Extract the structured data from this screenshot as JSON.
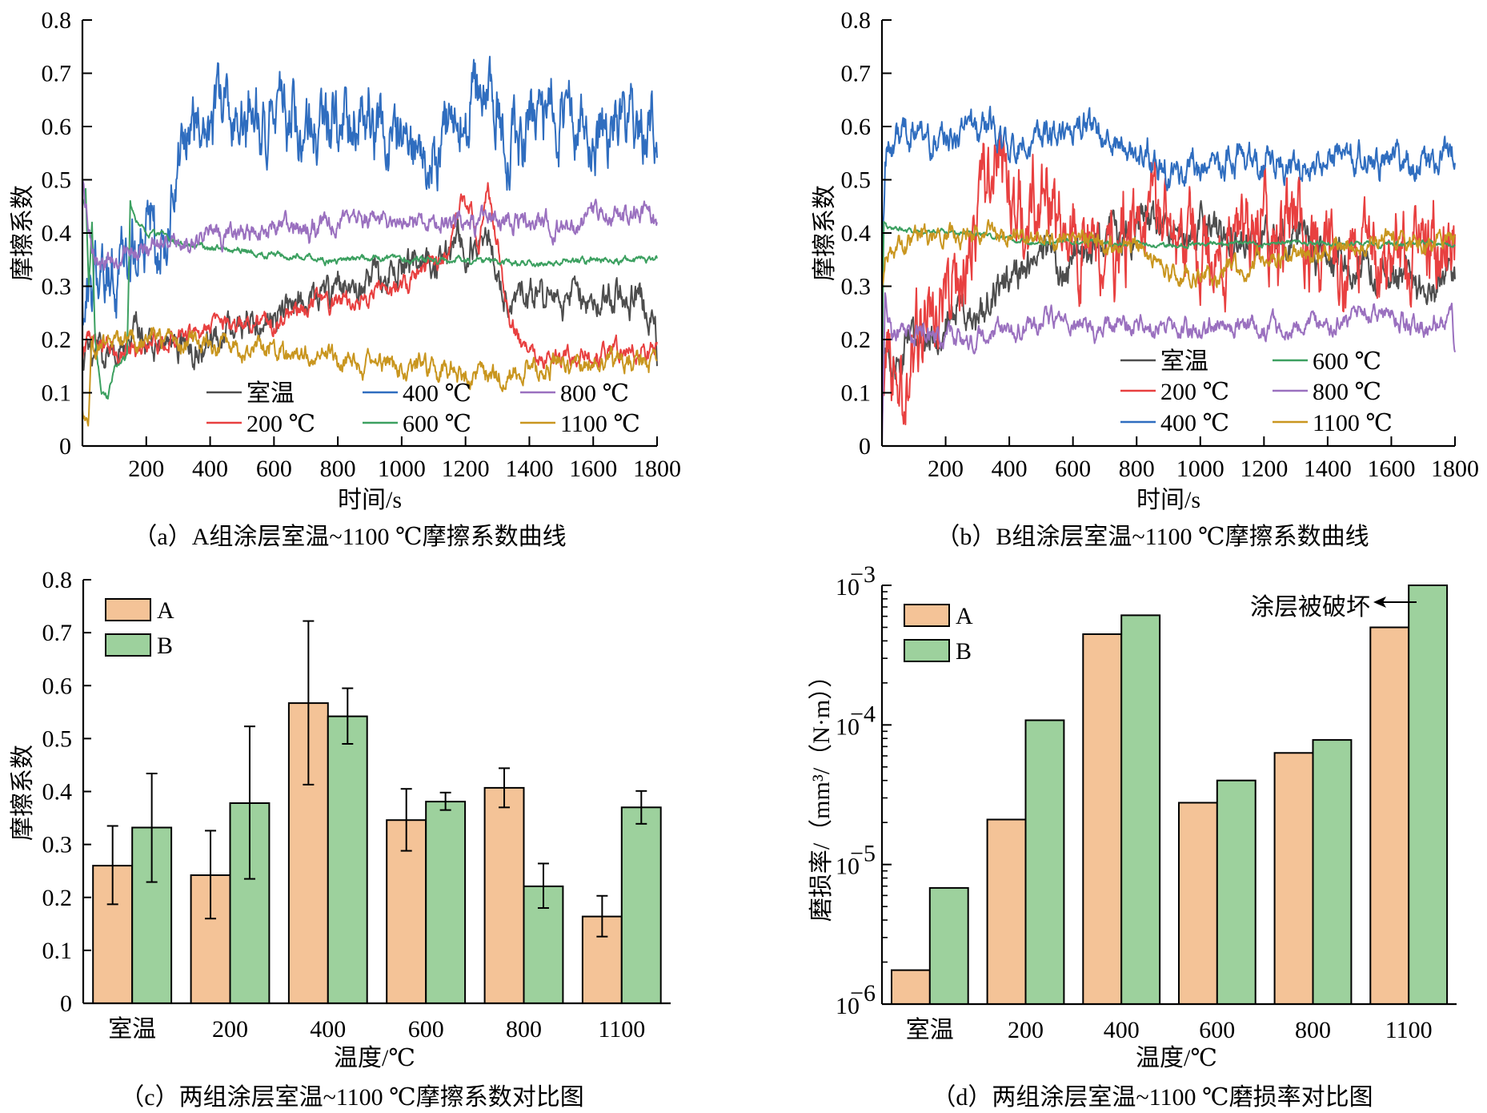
{
  "chart_data": [
    {
      "id": "a",
      "type": "line",
      "caption": "（a）A组涂层室温~1100 ℃摩擦系数曲线",
      "xlabel": "时间/s",
      "ylabel": "摩擦系数",
      "xlim": [
        0,
        1800
      ],
      "ylim": [
        0,
        0.8
      ],
      "xticks": [
        "200",
        "400",
        "600",
        "800",
        "1000",
        "1200",
        "1400",
        "1600",
        "1800"
      ],
      "xtick_values": [
        200,
        400,
        600,
        800,
        1000,
        1200,
        1400,
        1600,
        1800
      ],
      "yticks": [
        "0",
        "0.1",
        "0.2",
        "0.3",
        "0.4",
        "0.5",
        "0.6",
        "0.7",
        "0.8"
      ],
      "ytick_values": [
        0,
        0.1,
        0.2,
        0.3,
        0.4,
        0.5,
        0.6,
        0.7,
        0.8
      ],
      "legend_layout": "bottom-center, 3 columns",
      "series": [
        {
          "name": "室温",
          "color": "#4d4d4d",
          "noise": 0.02,
          "x": [
            0,
            20,
            100,
            200,
            300,
            400,
            500,
            600,
            700,
            800,
            900,
            1000,
            1100,
            1200,
            1250,
            1280,
            1320,
            1400,
            1500,
            1600,
            1700,
            1790,
            1800
          ],
          "y": [
            0.18,
            0.17,
            0.17,
            0.18,
            0.19,
            0.2,
            0.23,
            0.25,
            0.27,
            0.29,
            0.31,
            0.33,
            0.35,
            0.36,
            0.38,
            0.37,
            0.28,
            0.26,
            0.28,
            0.27,
            0.27,
            0.26,
            0.18
          ]
        },
        {
          "name": "200 ℃",
          "color": "#e84040",
          "noise": 0.012,
          "x": [
            0,
            20,
            100,
            200,
            300,
            400,
            500,
            600,
            700,
            800,
            900,
            1000,
            1100,
            1150,
            1180,
            1220,
            1240,
            1270,
            1300,
            1340,
            1400,
            1500,
            1600,
            1700,
            1800
          ],
          "y": [
            0.17,
            0.2,
            0.18,
            0.18,
            0.2,
            0.22,
            0.23,
            0.24,
            0.26,
            0.27,
            0.28,
            0.3,
            0.34,
            0.37,
            0.46,
            0.44,
            0.35,
            0.49,
            0.38,
            0.22,
            0.17,
            0.17,
            0.17,
            0.18,
            0.18
          ]
        },
        {
          "name": "400 ℃",
          "color": "#2f6dbf",
          "noise": 0.045,
          "x": [
            0,
            20,
            100,
            200,
            250,
            300,
            400,
            500,
            600,
            700,
            800,
            900,
            1000,
            1100,
            1150,
            1200,
            1250,
            1300,
            1400,
            1500,
            1600,
            1700,
            1790,
            1800
          ],
          "y": [
            0.3,
            0.31,
            0.36,
            0.39,
            0.41,
            0.49,
            0.6,
            0.61,
            0.62,
            0.63,
            0.61,
            0.6,
            0.59,
            0.57,
            0.58,
            0.67,
            0.68,
            0.62,
            0.6,
            0.59,
            0.6,
            0.61,
            0.62,
            0.55
          ]
        },
        {
          "name": "600 ℃",
          "color": "#3ca060",
          "noise": 0.004,
          "x": [
            0,
            10,
            20,
            30,
            40,
            60,
            80,
            100,
            120,
            140,
            150,
            160,
            200,
            300,
            400,
            600,
            800,
            1000,
            1200,
            1400,
            1600,
            1800
          ],
          "y": [
            0.45,
            0.48,
            0.3,
            0.42,
            0.2,
            0.1,
            0.09,
            0.14,
            0.15,
            0.17,
            0.45,
            0.43,
            0.4,
            0.38,
            0.37,
            0.36,
            0.35,
            0.35,
            0.35,
            0.345,
            0.345,
            0.35
          ]
        },
        {
          "name": "800 ℃",
          "color": "#9a70bf",
          "noise": 0.013,
          "x": [
            0,
            10,
            30,
            60,
            100,
            200,
            300,
            400,
            500,
            600,
            700,
            800,
            900,
            1000,
            1100,
            1200,
            1300,
            1400,
            1500,
            1600,
            1700,
            1800
          ],
          "y": [
            0.5,
            0.45,
            0.37,
            0.35,
            0.34,
            0.37,
            0.39,
            0.4,
            0.4,
            0.41,
            0.41,
            0.42,
            0.42,
            0.42,
            0.43,
            0.42,
            0.42,
            0.42,
            0.42,
            0.43,
            0.43,
            0.42
          ]
        },
        {
          "name": "1100 ℃",
          "color": "#c9961f",
          "noise": 0.013,
          "x": [
            0,
            10,
            20,
            30,
            50,
            100,
            200,
            300,
            400,
            450,
            500,
            600,
            700,
            800,
            900,
            1000,
            1100,
            1200,
            1300,
            1400,
            1500,
            1600,
            1700,
            1800
          ],
          "y": [
            0.07,
            0.03,
            0.05,
            0.18,
            0.19,
            0.19,
            0.19,
            0.2,
            0.19,
            0.19,
            0.18,
            0.17,
            0.16,
            0.155,
            0.15,
            0.15,
            0.145,
            0.14,
            0.14,
            0.145,
            0.15,
            0.15,
            0.16,
            0.16
          ]
        }
      ]
    },
    {
      "id": "b",
      "type": "line",
      "caption": "（b）B组涂层室温~1100 ℃摩擦系数曲线",
      "xlabel": "时间/s",
      "ylabel": "摩擦系数",
      "xlim": [
        0,
        1800
      ],
      "ylim": [
        0,
        0.8
      ],
      "xticks": [
        "200",
        "400",
        "600",
        "800",
        "1000",
        "1200",
        "1400",
        "1600",
        "1800"
      ],
      "xtick_values": [
        200,
        400,
        600,
        800,
        1000,
        1200,
        1400,
        1600,
        1800
      ],
      "yticks": [
        "0",
        "0.1",
        "0.2",
        "0.3",
        "0.4",
        "0.5",
        "0.6",
        "0.7",
        "0.8"
      ],
      "ytick_values": [
        0,
        0.1,
        0.2,
        0.3,
        0.4,
        0.5,
        0.6,
        0.7,
        0.8
      ],
      "legend_layout": "bottom-right, 2 columns",
      "series": [
        {
          "name": "室温",
          "color": "#4d4d4d",
          "noise": 0.025,
          "x": [
            0,
            5,
            30,
            100,
            200,
            300,
            400,
            500,
            600,
            700,
            800,
            900,
            1000,
            1100,
            1200,
            1300,
            1400,
            1500,
            1600,
            1700,
            1790,
            1800
          ],
          "y": [
            0.05,
            0.18,
            0.17,
            0.19,
            0.22,
            0.26,
            0.3,
            0.34,
            0.36,
            0.38,
            0.38,
            0.4,
            0.4,
            0.39,
            0.38,
            0.37,
            0.36,
            0.34,
            0.32,
            0.3,
            0.32,
            0.3
          ]
        },
        {
          "name": "200 ℃",
          "color": "#e84040",
          "noise": 0.055,
          "x": [
            0,
            10,
            50,
            100,
            200,
            250,
            300,
            350,
            400,
            450,
            500,
            600,
            700,
            800,
            900,
            1000,
            1200,
            1400,
            1500,
            1600,
            1700,
            1800
          ],
          "y": [
            0.14,
            0.17,
            0.2,
            0.21,
            0.27,
            0.35,
            0.44,
            0.5,
            0.48,
            0.42,
            0.42,
            0.4,
            0.38,
            0.38,
            0.38,
            0.38,
            0.37,
            0.37,
            0.38,
            0.39,
            0.38,
            0.4
          ]
        },
        {
          "name": "400 ℃",
          "color": "#2f6dbf",
          "noise": 0.02,
          "x": [
            0,
            10,
            30,
            60,
            100,
            200,
            300,
            400,
            500,
            600,
            650,
            700,
            800,
            900,
            1000,
            1100,
            1200,
            1300,
            1400,
            1500,
            1600,
            1700,
            1800
          ],
          "y": [
            0.33,
            0.55,
            0.58,
            0.6,
            0.6,
            0.58,
            0.57,
            0.55,
            0.57,
            0.58,
            0.6,
            0.58,
            0.55,
            0.53,
            0.53,
            0.52,
            0.53,
            0.54,
            0.54,
            0.55,
            0.53,
            0.53,
            0.55
          ]
        },
        {
          "name": "600 ℃",
          "color": "#3ca060",
          "noise": 0.003,
          "x": [
            0,
            5,
            20,
            100,
            200,
            300,
            400,
            500,
            600,
            700,
            800,
            1000,
            1200,
            1400,
            1600,
            1800
          ],
          "y": [
            0.05,
            0.42,
            0.41,
            0.405,
            0.4,
            0.395,
            0.39,
            0.385,
            0.38,
            0.38,
            0.38,
            0.38,
            0.38,
            0.38,
            0.38,
            0.38
          ]
        },
        {
          "name": "800 ℃",
          "color": "#9a70bf",
          "noise": 0.012,
          "x": [
            0,
            10,
            30,
            100,
            200,
            300,
            400,
            500,
            600,
            700,
            800,
            900,
            1000,
            1100,
            1200,
            1300,
            1400,
            1500,
            1600,
            1700,
            1790,
            1800
          ],
          "y": [
            0.0,
            0.26,
            0.2,
            0.2,
            0.21,
            0.2,
            0.22,
            0.23,
            0.23,
            0.22,
            0.23,
            0.22,
            0.21,
            0.22,
            0.22,
            0.23,
            0.23,
            0.24,
            0.25,
            0.21,
            0.23,
            0.16
          ]
        },
        {
          "name": "1100 ℃",
          "color": "#c9961f",
          "noise": 0.012,
          "x": [
            0,
            10,
            50,
            150,
            250,
            300,
            400,
            500,
            600,
            700,
            800,
            850,
            900,
            1000,
            1050,
            1100,
            1200,
            1300,
            1400,
            1500,
            1600,
            1700,
            1800
          ],
          "y": [
            0.3,
            0.36,
            0.38,
            0.39,
            0.39,
            0.4,
            0.4,
            0.39,
            0.39,
            0.38,
            0.38,
            0.36,
            0.32,
            0.32,
            0.31,
            0.33,
            0.34,
            0.36,
            0.37,
            0.38,
            0.38,
            0.38,
            0.39
          ]
        }
      ]
    },
    {
      "id": "c",
      "type": "bar",
      "caption": "（c）两组涂层室温~1100 ℃摩擦系数对比图",
      "xlabel": "温度/℃",
      "ylabel": "摩擦系数",
      "ylim": [
        0,
        0.8
      ],
      "yticks": [
        "0",
        "0.1",
        "0.2",
        "0.3",
        "0.4",
        "0.5",
        "0.6",
        "0.7",
        "0.8"
      ],
      "ytick_values": [
        0,
        0.1,
        0.2,
        0.3,
        0.4,
        0.5,
        0.6,
        0.7,
        0.8
      ],
      "categories": [
        "室温",
        "200",
        "400",
        "600",
        "800",
        "1100"
      ],
      "legend_layout": "top-left",
      "series": [
        {
          "name": "A",
          "color": "#f4c397",
          "values": [
            0.26,
            0.242,
            0.567,
            0.346,
            0.407,
            0.164
          ],
          "err_low": [
            0.187,
            0.16,
            0.413,
            0.288,
            0.37,
            0.126
          ],
          "err_high": [
            0.335,
            0.326,
            0.722,
            0.405,
            0.444,
            0.203
          ]
        },
        {
          "name": "B",
          "color": "#9dd19d",
          "values": [
            0.332,
            0.378,
            0.542,
            0.381,
            0.221,
            0.37
          ],
          "err_low": [
            0.229,
            0.235,
            0.49,
            0.365,
            0.18,
            0.339
          ],
          "err_high": [
            0.434,
            0.523,
            0.595,
            0.398,
            0.264,
            0.401
          ]
        }
      ]
    },
    {
      "id": "d",
      "type": "bar",
      "caption": "（d）两组涂层室温~1100 ℃磨损率对比图",
      "xlabel": "温度/℃",
      "ylabel": "磨损率/（mm³/（N·m））",
      "yscale": "log",
      "ylim": [
        1e-06,
        0.001
      ],
      "yticks": [
        {
          "base": "10",
          "exp": "−6",
          "value": 1e-06
        },
        {
          "base": "10",
          "exp": "−5",
          "value": 1e-05
        },
        {
          "base": "10",
          "exp": "−4",
          "value": 0.0001
        },
        {
          "base": "10",
          "exp": "−3",
          "value": 0.001
        }
      ],
      "categories": [
        "室温",
        "200",
        "400",
        "600",
        "800",
        "1100"
      ],
      "legend_layout": "top-left",
      "annotation": "涂层被破坏",
      "series": [
        {
          "name": "A",
          "color": "#f4c397",
          "values": [
            1.75e-06,
            2.1e-05,
            0.000447,
            2.77e-05,
            6.3e-05,
            0.0005
          ]
        },
        {
          "name": "B",
          "color": "#9dd19d",
          "values": [
            6.8e-06,
            0.000108,
            0.00061,
            4e-05,
            7.8e-05,
            0.001
          ]
        }
      ]
    }
  ]
}
